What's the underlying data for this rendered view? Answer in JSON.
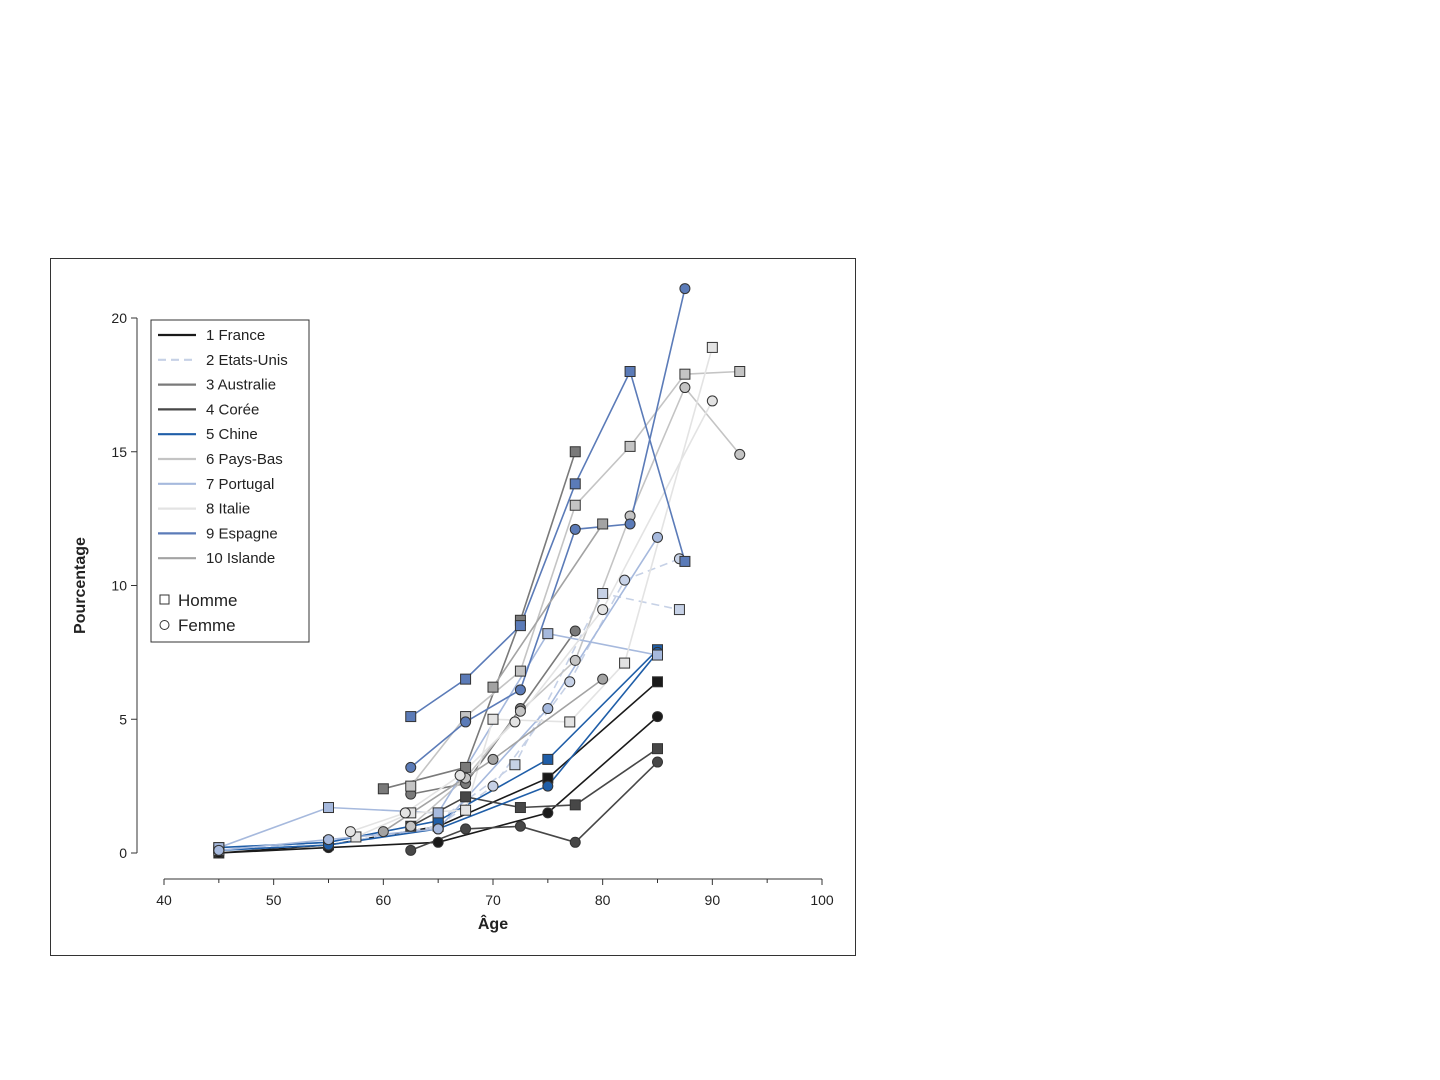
{
  "chart_data": {
    "type": "line",
    "title": "",
    "xlabel": "Âge",
    "ylabel": "Pourcentage",
    "xlim": [
      40,
      100
    ],
    "ylim": [
      0,
      20
    ],
    "xticks": [
      40,
      50,
      60,
      70,
      80,
      90,
      100
    ],
    "yticks": [
      0,
      5,
      10,
      15,
      20
    ],
    "grid": false,
    "legend_position": "top-left",
    "marker_legend": [
      {
        "label": "Homme",
        "marker": "square"
      },
      {
        "label": "Femme",
        "marker": "circle"
      }
    ],
    "series": [
      {
        "name": "1 France",
        "color": "#1a1a1a",
        "dash": "",
        "homme": [
          [
            45,
            0.0
          ],
          [
            55,
            0.3
          ],
          [
            65,
            1.0
          ],
          [
            75,
            2.8
          ],
          [
            85,
            6.4
          ]
        ],
        "femme": [
          [
            45,
            0.0
          ],
          [
            55,
            0.2
          ],
          [
            65,
            0.4
          ],
          [
            75,
            1.5
          ],
          [
            85,
            5.1
          ]
        ]
      },
      {
        "name": "2 Etats-Unis",
        "color": "#c6d1e6",
        "dash": "8,5",
        "homme": [
          [
            45,
            0.1
          ],
          [
            55,
            0.4
          ],
          [
            65,
            1.2
          ],
          [
            72,
            3.3
          ],
          [
            80,
            9.7
          ],
          [
            87,
            9.1
          ]
        ],
        "femme": [
          [
            45,
            0.1
          ],
          [
            55,
            0.3
          ],
          [
            65,
            1.0
          ],
          [
            70,
            2.5
          ],
          [
            77,
            6.4
          ],
          [
            82,
            10.2
          ],
          [
            87,
            11.0
          ]
        ]
      },
      {
        "name": "3 Australie",
        "color": "#7a7a7a",
        "dash": "",
        "homme": [
          [
            60,
            2.4
          ],
          [
            67.5,
            3.2
          ],
          [
            72.5,
            8.7
          ],
          [
            77.5,
            15.0
          ]
        ],
        "femme": [
          [
            62.5,
            2.2
          ],
          [
            67.5,
            2.6
          ],
          [
            72.5,
            5.4
          ],
          [
            77.5,
            8.3
          ]
        ]
      },
      {
        "name": "4 Corée",
        "color": "#474747",
        "dash": "",
        "homme": [
          [
            62.5,
            1.0
          ],
          [
            67.5,
            2.1
          ],
          [
            72.5,
            1.7
          ],
          [
            77.5,
            1.8
          ],
          [
            85,
            3.9
          ]
        ],
        "femme": [
          [
            62.5,
            0.1
          ],
          [
            67.5,
            0.9
          ],
          [
            72.5,
            1.0
          ],
          [
            77.5,
            0.4
          ],
          [
            85,
            3.4
          ]
        ]
      },
      {
        "name": "5 Chine",
        "color": "#1f5ea8",
        "dash": "",
        "homme": [
          [
            45,
            0.2
          ],
          [
            55,
            0.4
          ],
          [
            65,
            1.2
          ],
          [
            75,
            3.5
          ],
          [
            85,
            7.6
          ]
        ],
        "femme": [
          [
            45,
            0.1
          ],
          [
            55,
            0.3
          ],
          [
            65,
            0.9
          ],
          [
            75,
            2.5
          ],
          [
            85,
            7.5
          ]
        ]
      },
      {
        "name": "6 Pays-Bas",
        "color": "#c4c4c4",
        "dash": "",
        "homme": [
          [
            62.5,
            2.5
          ],
          [
            67.5,
            5.1
          ],
          [
            72.5,
            6.8
          ],
          [
            77.5,
            13.0
          ],
          [
            82.5,
            15.2
          ],
          [
            87.5,
            17.9
          ],
          [
            92.5,
            18.0
          ]
        ],
        "femme": [
          [
            62.5,
            1.0
          ],
          [
            67.5,
            2.8
          ],
          [
            72.5,
            5.3
          ],
          [
            77.5,
            7.2
          ],
          [
            82.5,
            12.6
          ],
          [
            87.5,
            17.4
          ],
          [
            92.5,
            14.9
          ]
        ]
      },
      {
        "name": "7 Portugal",
        "color": "#a6b9dd",
        "dash": "",
        "homme": [
          [
            45,
            0.2
          ],
          [
            55,
            1.7
          ],
          [
            65,
            1.5
          ],
          [
            75,
            8.2
          ],
          [
            85,
            7.4
          ]
        ],
        "femme": [
          [
            45,
            0.1
          ],
          [
            55,
            0.5
          ],
          [
            65,
            0.9
          ],
          [
            75,
            5.4
          ],
          [
            85,
            11.8
          ]
        ]
      },
      {
        "name": "8 Italie",
        "color": "#e3e3e3",
        "dash": "",
        "homme": [
          [
            57.5,
            0.6
          ],
          [
            62.5,
            1.5
          ],
          [
            67.5,
            1.6
          ],
          [
            70,
            5.0
          ],
          [
            77,
            4.9
          ],
          [
            82,
            7.1
          ],
          [
            90,
            18.9
          ]
        ],
        "femme": [
          [
            57,
            0.8
          ],
          [
            62,
            1.5
          ],
          [
            67,
            2.9
          ],
          [
            72,
            4.9
          ],
          [
            80,
            9.1
          ],
          [
            90,
            16.9
          ]
        ]
      },
      {
        "name": "9 Espagne",
        "color": "#5b7bb8",
        "dash": "",
        "homme": [
          [
            62.5,
            5.1
          ],
          [
            67.5,
            6.5
          ],
          [
            72.5,
            8.5
          ],
          [
            77.5,
            13.8
          ],
          [
            82.5,
            18.0
          ],
          [
            87.5,
            10.9
          ]
        ],
        "femme": [
          [
            62.5,
            3.2
          ],
          [
            67.5,
            4.9
          ],
          [
            72.5,
            6.1
          ],
          [
            77.5,
            12.1
          ],
          [
            82.5,
            12.3
          ],
          [
            87.5,
            21.1
          ]
        ]
      },
      {
        "name": "10 Islande",
        "color": "#a3a3a3",
        "dash": "",
        "homme": [
          [
            70,
            6.2
          ],
          [
            80,
            12.3
          ]
        ],
        "femme": [
          [
            60,
            0.8
          ],
          [
            70,
            3.5
          ],
          [
            80,
            6.5
          ]
        ]
      }
    ]
  }
}
